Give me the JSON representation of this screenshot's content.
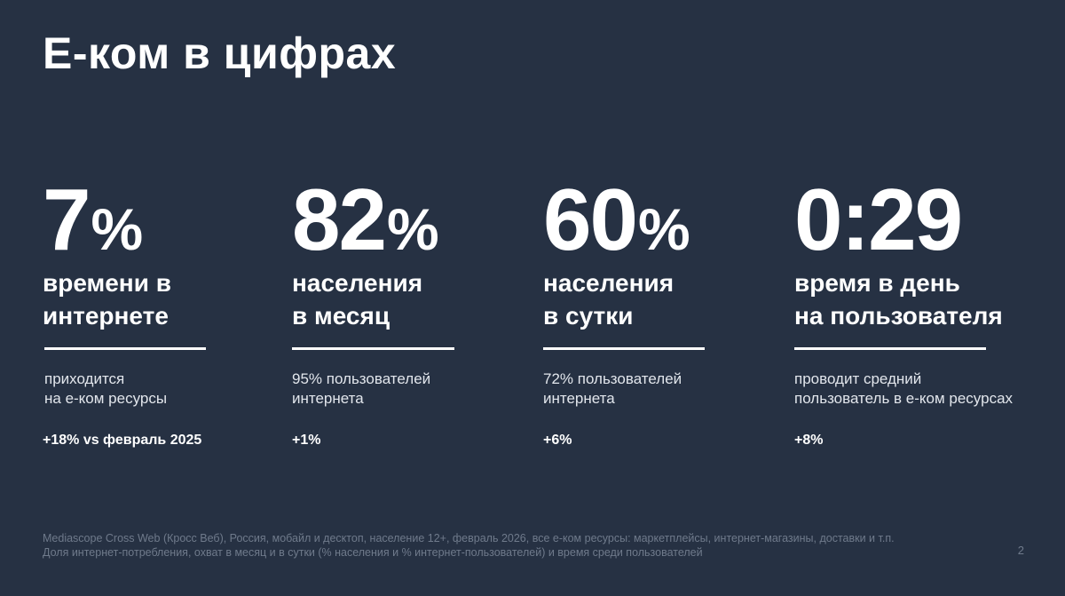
{
  "title": "Е-ком в цифрах",
  "stats": [
    {
      "value": "7",
      "unit": "%",
      "label": "времени в\nинтернете",
      "description": "приходится\nна е-ком ресурсы",
      "change": "+18% vs февраль 2025"
    },
    {
      "value": "82",
      "unit": "%",
      "label": "населения\nв месяц",
      "description": "95% пользователей\nинтернета",
      "change": "+1%"
    },
    {
      "value": "60",
      "unit": "%",
      "label": "населения\nв сутки",
      "description": "72% пользователей\nинтернета",
      "change": "+6%"
    },
    {
      "value": "0:29",
      "unit": "",
      "label": "время в день\nна пользователя",
      "description": "проводит средний\nпользователь в е-ком ресурсах",
      "change": "+8%"
    }
  ],
  "footnote": {
    "line1": "Mediascope Cross Web (Кросс Веб), Россия, мобайл и десктоп, население 12+, февраль 2026, все е-ком ресурсы: маркетплейсы, интернет-магазины, доставки и т.п.",
    "line2": "Доля интернет-потребления, охват в месяц и в сутки (% населения и % интернет-пользователей) и время среди пользователей"
  },
  "page_number": "2",
  "colors": {
    "background": "#263143",
    "text": "#ffffff",
    "muted": "#6f7a8b"
  }
}
